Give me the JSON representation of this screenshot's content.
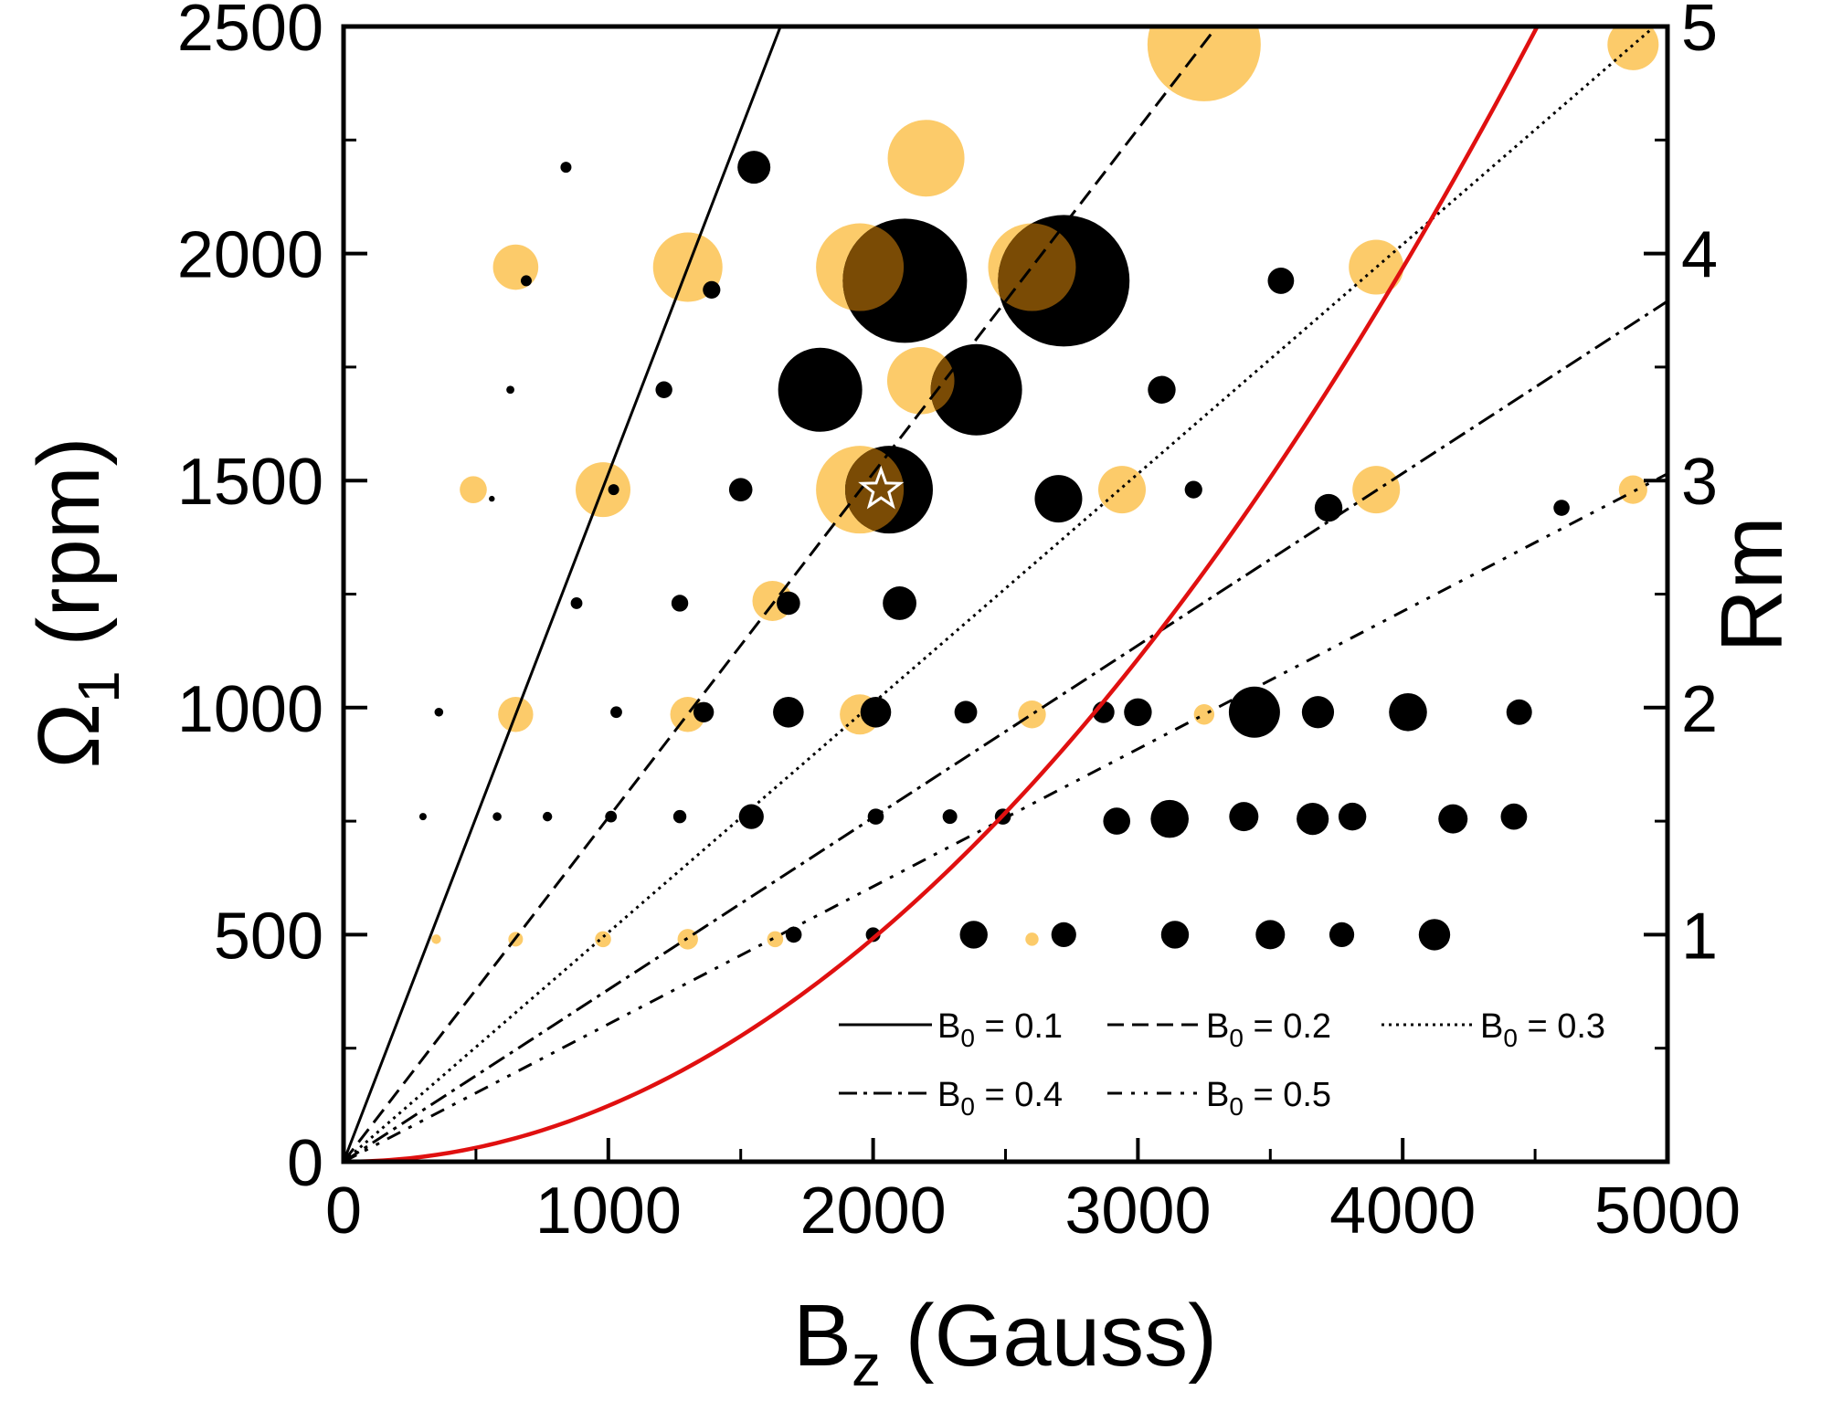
{
  "chart_data": {
    "type": "scatter",
    "xlabel": {
      "main": "B",
      "sub": "z",
      "rest": " (Gauss)"
    },
    "ylabel": {
      "main": "Ω",
      "sub": "1",
      "rest": "  (rpm)"
    },
    "y2label": "Rm",
    "xlim": [
      0,
      5000
    ],
    "ylim": [
      0,
      2500
    ],
    "y2lim": [
      0,
      5
    ],
    "x_ticks": [
      0,
      1000,
      2000,
      3000,
      4000,
      5000
    ],
    "y_ticks": [
      0,
      500,
      1000,
      1500,
      2000,
      2500
    ],
    "y2_ticks": [
      1,
      2,
      3,
      4,
      5
    ],
    "tick_labels": {
      "x": [
        "0",
        "1000",
        "2000",
        "3000",
        "4000",
        "5000"
      ],
      "y": [
        "0",
        "500",
        "1000",
        "1500",
        "2000",
        "2500"
      ],
      "y2": [
        "1",
        "2",
        "3",
        "4",
        "5"
      ]
    },
    "grid": false,
    "legend_position": "bottom-right",
    "colors": {
      "black": "#000000",
      "orange": "#fccb6a",
      "overlap_brown": "#7a4b05",
      "parabola": "#e01010",
      "star": "#ffffff"
    },
    "lines": [
      {
        "label_main": "B",
        "label_sub": "0",
        "label_rest": " = 0.1",
        "slope_rpm_per_gauss": 1.515,
        "dash": "none"
      },
      {
        "label_main": "B",
        "label_sub": "0",
        "label_rest": " = 0.2",
        "slope_rpm_per_gauss": 0.758,
        "dash": "18 9"
      },
      {
        "label_main": "B",
        "label_sub": "0",
        "label_rest": " = 0.3",
        "slope_rpm_per_gauss": 0.505,
        "dash": "3 5"
      },
      {
        "label_main": "B",
        "label_sub": "0",
        "label_rest": " = 0.4",
        "slope_rpm_per_gauss": 0.379,
        "dash": "20 7 4 7"
      },
      {
        "label_main": "B",
        "label_sub": "0",
        "label_rest": " = 0.5",
        "slope_rpm_per_gauss": 0.303,
        "dash": "16 10 4 10 4 10"
      }
    ],
    "parabola": {
      "coefficient": 0.000123,
      "color": "#e01010"
    },
    "series": [
      {
        "color": "#fccb6a",
        "points": [
          [
            350,
            490,
            1.3
          ],
          [
            650,
            490,
            2
          ],
          [
            980,
            490,
            2.2
          ],
          [
            1300,
            490,
            2.8
          ],
          [
            1630,
            490,
            2.2
          ],
          [
            2600,
            490,
            1.8
          ],
          [
            650,
            985,
            4.8
          ],
          [
            1300,
            985,
            4.8
          ],
          [
            1950,
            985,
            5.5
          ],
          [
            2600,
            985,
            3.8
          ],
          [
            3250,
            985,
            2.8
          ],
          [
            490,
            1480,
            3.7
          ],
          [
            980,
            1480,
            7.5
          ],
          [
            1950,
            1480,
            12
          ],
          [
            2940,
            1480,
            6.5
          ],
          [
            3900,
            1480,
            6.5
          ],
          [
            4870,
            1480,
            3.9
          ],
          [
            1620,
            1235,
            5.5
          ],
          [
            650,
            1970,
            6.2
          ],
          [
            1300,
            1970,
            9.5
          ],
          [
            1950,
            1970,
            12
          ],
          [
            2600,
            1970,
            12
          ],
          [
            3900,
            1970,
            7.5
          ],
          [
            2180,
            1720,
            9.2
          ],
          [
            2200,
            2210,
            10.5
          ],
          [
            3250,
            2460,
            15.5
          ],
          [
            4870,
            2460,
            7
          ]
        ]
      },
      {
        "color": "#000000",
        "points": [
          [
            1700,
            500,
            2.2
          ],
          [
            2000,
            500,
            2
          ],
          [
            2380,
            500,
            3.8
          ],
          [
            2720,
            500,
            3.4
          ],
          [
            3140,
            500,
            3.8
          ],
          [
            3500,
            500,
            4
          ],
          [
            3770,
            500,
            3.4
          ],
          [
            4120,
            500,
            4.3
          ],
          [
            300,
            760,
            1
          ],
          [
            580,
            760,
            1.2
          ],
          [
            770,
            760,
            1.3
          ],
          [
            1010,
            760,
            1.6
          ],
          [
            1270,
            760,
            1.8
          ],
          [
            1540,
            760,
            3.4
          ],
          [
            2010,
            760,
            2.2
          ],
          [
            2290,
            760,
            2
          ],
          [
            2490,
            760,
            2.2
          ],
          [
            2920,
            750,
            3.7
          ],
          [
            3120,
            755,
            5.2
          ],
          [
            3400,
            760,
            4
          ],
          [
            3660,
            755,
            4.4
          ],
          [
            3810,
            760,
            3.8
          ],
          [
            4190,
            755,
            4
          ],
          [
            4420,
            760,
            3.6
          ],
          [
            360,
            990,
            1.2
          ],
          [
            1030,
            990,
            1.6
          ],
          [
            1360,
            990,
            2.8
          ],
          [
            1680,
            990,
            4.2
          ],
          [
            2010,
            990,
            4.2
          ],
          [
            2350,
            990,
            3.1
          ],
          [
            2870,
            990,
            3
          ],
          [
            3000,
            990,
            3.8
          ],
          [
            3440,
            990,
            7
          ],
          [
            3680,
            990,
            4.4
          ],
          [
            4020,
            990,
            5.2
          ],
          [
            4440,
            990,
            3.5
          ],
          [
            880,
            1230,
            1.6
          ],
          [
            1270,
            1230,
            2.3
          ],
          [
            1680,
            1230,
            3.2
          ],
          [
            2100,
            1230,
            4.6
          ],
          [
            560,
            1460,
            0.8
          ],
          [
            1020,
            1480,
            1.5
          ],
          [
            1500,
            1480,
            3.2
          ],
          [
            2060,
            1480,
            12
          ],
          [
            2700,
            1460,
            6.5
          ],
          [
            3210,
            1480,
            2.4
          ],
          [
            3720,
            1440,
            3.8
          ],
          [
            4600,
            1440,
            2.2
          ],
          [
            630,
            1700,
            1.1
          ],
          [
            1210,
            1700,
            2.3
          ],
          [
            1800,
            1700,
            11.5
          ],
          [
            2390,
            1700,
            12.5
          ],
          [
            3090,
            1700,
            3.8
          ],
          [
            690,
            1940,
            1.5
          ],
          [
            1390,
            1920,
            2.4
          ],
          [
            2120,
            1940,
            17
          ],
          [
            2720,
            1940,
            18
          ],
          [
            3540,
            1940,
            3.6
          ],
          [
            840,
            2190,
            1.5
          ],
          [
            1550,
            2190,
            4.5
          ]
        ]
      }
    ],
    "overlaps": [
      {
        "a": [
          1950,
          1970,
          12
        ],
        "b": [
          2120,
          1940,
          17
        ]
      },
      {
        "a": [
          2600,
          1970,
          12
        ],
        "b": [
          2720,
          1940,
          18
        ]
      },
      {
        "a": [
          2180,
          1720,
          9.2
        ],
        "b": [
          2390,
          1700,
          12.5
        ]
      },
      {
        "a": [
          1950,
          1480,
          12
        ],
        "b": [
          2060,
          1480,
          12
        ]
      }
    ],
    "marker": {
      "type": "star",
      "point": [
        2030,
        1480
      ]
    }
  }
}
